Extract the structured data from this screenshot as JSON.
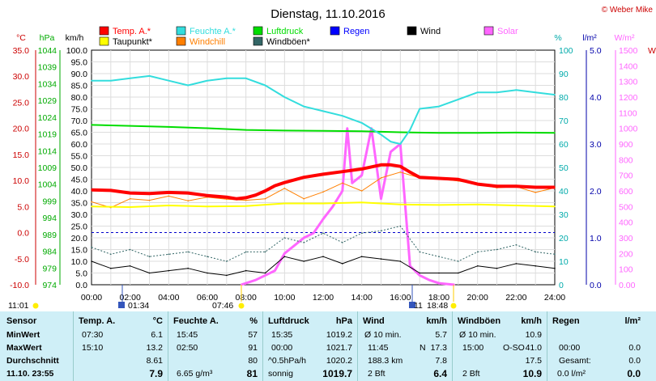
{
  "title": "Dienstag, 11.10.2016",
  "copyright": "© Weber Mike",
  "legend_row1": [
    {
      "label": "Temp. A.*",
      "color": "#ff0000"
    },
    {
      "label": "Feuchte A.*",
      "color": "#33dddd"
    },
    {
      "label": "Luftdruck",
      "color": "#00dd00"
    },
    {
      "label": "Regen",
      "color": "#0000ff"
    },
    {
      "label": "Wind",
      "color": "#000000"
    },
    {
      "label": "Solar",
      "color": "#ff66ff"
    }
  ],
  "legend_row2": [
    {
      "label": "Taupunkt*",
      "color": "#ffff00"
    },
    {
      "label": "Windchill",
      "color": "#ff7f00"
    },
    {
      "label": "Windböen*",
      "color": "#336666"
    }
  ],
  "units": {
    "celsius": "°C",
    "hpa": "hPa",
    "kmh": "km/h",
    "percent": "%",
    "lm2": "l/m²",
    "wm2": "W/m²",
    "extra": "W"
  },
  "axis_ticks": {
    "celsius": [
      "35.0",
      "30.0",
      "25.0",
      "20.0",
      "15.0",
      "10.0",
      "5.0",
      "0.0",
      "-5.0",
      "-10.0"
    ],
    "hpa": [
      "1044",
      "1039",
      "1034",
      "1029",
      "1024",
      "1019",
      "1014",
      "1009",
      "1004",
      "999",
      "994",
      "989",
      "984",
      "979",
      "974"
    ],
    "kmh": [
      "100.0",
      "95.0",
      "90.0",
      "85.0",
      "80.0",
      "75.0",
      "70.0",
      "65.0",
      "60.0",
      "55.0",
      "50.0",
      "45.0",
      "40.0",
      "35.0",
      "30.0",
      "25.0",
      "20.0",
      "15.0",
      "10.0",
      "5.0",
      "0.0"
    ],
    "percent": [
      "100",
      "90",
      "80",
      "70",
      "60",
      "50",
      "40",
      "30",
      "20",
      "10",
      "0"
    ],
    "lm2": [
      "5.0",
      "4.0",
      "3.0",
      "2.0",
      "1.0",
      "0.0"
    ],
    "wm2": [
      "1500",
      "1400",
      "1300",
      "1200",
      "1100",
      "1000",
      "900",
      "800",
      "700",
      "600",
      "500",
      "400",
      "300",
      "200",
      "100",
      "0.00"
    ],
    "xticks": [
      "00:00",
      "02:00",
      "04:00",
      "06:00",
      "08:00",
      "10:00",
      "12:00",
      "14:00",
      "16:00",
      "18:00",
      "20:00",
      "22:00",
      "24:00"
    ]
  },
  "sun_events": {
    "sunrise_label": "11:01",
    "rise": "01:34",
    "set_a": "07:46",
    "set_b": "18:48",
    "moon": "11"
  },
  "chart_data": {
    "type": "line",
    "x_unit": "hours",
    "xlim": [
      0,
      24
    ],
    "series": [
      {
        "name": "Temp. A.*",
        "axis": "°C",
        "ylim": [
          -10,
          35
        ],
        "color": "#ff0000",
        "x": [
          0,
          1,
          2,
          3,
          4,
          5,
          6,
          7,
          7.5,
          8,
          8.5,
          9,
          9.5,
          10,
          11,
          12,
          13,
          14,
          15,
          15.5,
          16,
          16.5,
          17,
          18,
          19,
          20,
          21,
          22,
          23,
          24
        ],
        "y": [
          8.2,
          8.1,
          7.6,
          7.5,
          7.7,
          7.6,
          7.1,
          6.8,
          6.5,
          6.7,
          7.2,
          8.0,
          9.0,
          9.6,
          10.6,
          11.2,
          11.7,
          12.2,
          13.0,
          13.0,
          12.7,
          11.6,
          10.6,
          10.4,
          10.2,
          9.3,
          8.9,
          8.9,
          8.7,
          8.7
        ]
      },
      {
        "name": "Taupunkt*",
        "axis": "°C",
        "ylim": [
          -10,
          35
        ],
        "color": "#ffff00",
        "x": [
          0,
          2,
          4,
          6,
          8,
          10,
          12,
          14,
          16,
          18,
          20,
          22,
          24
        ],
        "y": [
          5.0,
          4.9,
          5.2,
          5.0,
          5.1,
          5.6,
          5.6,
          5.8,
          5.4,
          5.3,
          5.4,
          5.2,
          5.0
        ]
      },
      {
        "name": "Windchill",
        "axis": "°C",
        "ylim": [
          -10,
          35
        ],
        "color": "#ff7f00",
        "x": [
          0,
          1,
          2,
          3,
          4,
          5,
          6,
          7,
          8,
          9,
          10,
          11,
          12,
          13,
          14,
          15,
          16,
          17,
          18,
          19,
          20,
          21,
          22,
          23,
          24
        ],
        "y": [
          5.9,
          4.8,
          6.5,
          6.2,
          7.0,
          6.1,
          6.8,
          6.4,
          6.2,
          6.5,
          8.5,
          6.5,
          7.8,
          9.5,
          8.0,
          10.5,
          11.6,
          10.5,
          10.3,
          9.9,
          9.3,
          8.6,
          8.8,
          7.7,
          8.6
        ]
      },
      {
        "name": "Feuchte A.*",
        "axis": "%",
        "ylim": [
          0,
          100
        ],
        "color": "#33dddd",
        "x": [
          0,
          1,
          2,
          3,
          4,
          5,
          6,
          7,
          8,
          9,
          10,
          11,
          12,
          13,
          14,
          15,
          15.5,
          16,
          16.5,
          17,
          18,
          19,
          20,
          21,
          22,
          23,
          24
        ],
        "y": [
          87,
          87,
          88,
          89,
          87,
          85,
          87,
          88,
          88,
          85,
          80,
          76,
          74,
          72,
          69,
          64,
          61,
          60,
          66,
          75,
          76,
          79,
          82,
          82,
          83,
          82,
          81
        ]
      },
      {
        "name": "Luftdruck",
        "axis": "hPa",
        "ylim": [
          974,
          1044
        ],
        "color": "#00dd00",
        "x": [
          0,
          2,
          4,
          6,
          8,
          10,
          12,
          14,
          16,
          18,
          20,
          22,
          24
        ],
        "y": [
          1021.7,
          1021.4,
          1021.1,
          1020.7,
          1020.2,
          1020.0,
          1019.9,
          1019.8,
          1019.5,
          1019.3,
          1019.3,
          1019.4,
          1019.3
        ]
      },
      {
        "name": "Wind",
        "axis": "km/h",
        "ylim": [
          0,
          100
        ],
        "color": "#000000",
        "x": [
          0,
          1,
          2,
          3,
          4,
          5,
          6,
          7,
          8,
          9,
          10,
          11,
          12,
          13,
          14,
          15,
          16,
          17,
          18,
          19,
          20,
          21,
          22,
          23,
          24
        ],
        "y": [
          10,
          7,
          8,
          5,
          6,
          7,
          5,
          4,
          6,
          5,
          12,
          10,
          12,
          9,
          12,
          11,
          10,
          5,
          5,
          5,
          8,
          7,
          9,
          8,
          7
        ]
      },
      {
        "name": "Windböen*",
        "axis": "km/h",
        "ylim": [
          0,
          100
        ],
        "color": "#336666",
        "x": [
          0,
          1,
          2,
          3,
          4,
          5,
          6,
          7,
          8,
          9,
          10,
          11,
          12,
          13,
          14,
          15,
          16,
          17,
          18,
          19,
          20,
          21,
          22,
          23,
          24
        ],
        "y": [
          16,
          13,
          15,
          12,
          13,
          14,
          12,
          10,
          14,
          14,
          20,
          18,
          22,
          18,
          22,
          23,
          25,
          14,
          12,
          10,
          14,
          15,
          17,
          14,
          13
        ]
      },
      {
        "name": "Solar",
        "axis": "W/m²",
        "ylim": [
          0,
          1500
        ],
        "color": "#ff66ff",
        "x": [
          7.75,
          8.5,
          9.5,
          10,
          10.5,
          11,
          11.5,
          12,
          12.5,
          13,
          13.25,
          13.5,
          14,
          14.5,
          15,
          15.5,
          16,
          16.5,
          17,
          17.5,
          18,
          18.8
        ],
        "y": [
          0,
          30,
          90,
          200,
          250,
          300,
          330,
          420,
          500,
          600,
          1000,
          650,
          700,
          1000,
          550,
          850,
          900,
          120,
          60,
          30,
          10,
          0
        ]
      }
    ]
  },
  "stats": {
    "sensor": {
      "header": "Sensor",
      "rows": [
        "MinWert",
        "MaxWert",
        "Durchschnitt",
        "11.10. 23:55"
      ]
    },
    "temp": {
      "header": "Temp. A.",
      "unit": "°C",
      "t1": "07:30",
      "v1": "6.1",
      "t2": "15:10",
      "v2": "13.2",
      "v3": "8.61",
      "v4": "7.9"
    },
    "feuchte": {
      "header": "Feuchte A.",
      "unit": "%",
      "t1": "15:45",
      "v1": "57",
      "t2": "02:50",
      "v2": "91",
      "v3": "80",
      "t4": "6.65 g/m³",
      "v4": "81"
    },
    "luftdruck": {
      "header": "Luftdruck",
      "unit": "hPa",
      "t1": "15:35",
      "v1": "1019.2",
      "t2": "00:00",
      "v2": "1021.7",
      "t3": "^0.5hPa/h",
      "v3": "1020.2",
      "t4": "sonnig",
      "v4": "1019.7"
    },
    "wind": {
      "header": "Wind",
      "unit": "km/h",
      "t1": "Ø 10 min.",
      "v1": "5.7",
      "t2": "11:45",
      "m2": "N",
      "v2": "17.3",
      "t3": "188.3 km",
      "v3": "7.8",
      "t4": "2 Bft",
      "v4": "6.4"
    },
    "boeen": {
      "header": "Windböen",
      "unit": "km/h",
      "t1": "Ø 10 min.",
      "v1": "10.9",
      "t2": "15:00",
      "m2": "O-SO",
      "v2": "41.0",
      "v3": "17.5",
      "t4": "2 Bft",
      "v4": "10.9"
    },
    "regen": {
      "header": "Regen",
      "unit": "l/m²",
      "t2": "00:00",
      "v2": "0.0",
      "t3": "Gesamt:",
      "v3": "0.0",
      "t4": "0.0 l/m²",
      "v4": "0.0"
    }
  }
}
